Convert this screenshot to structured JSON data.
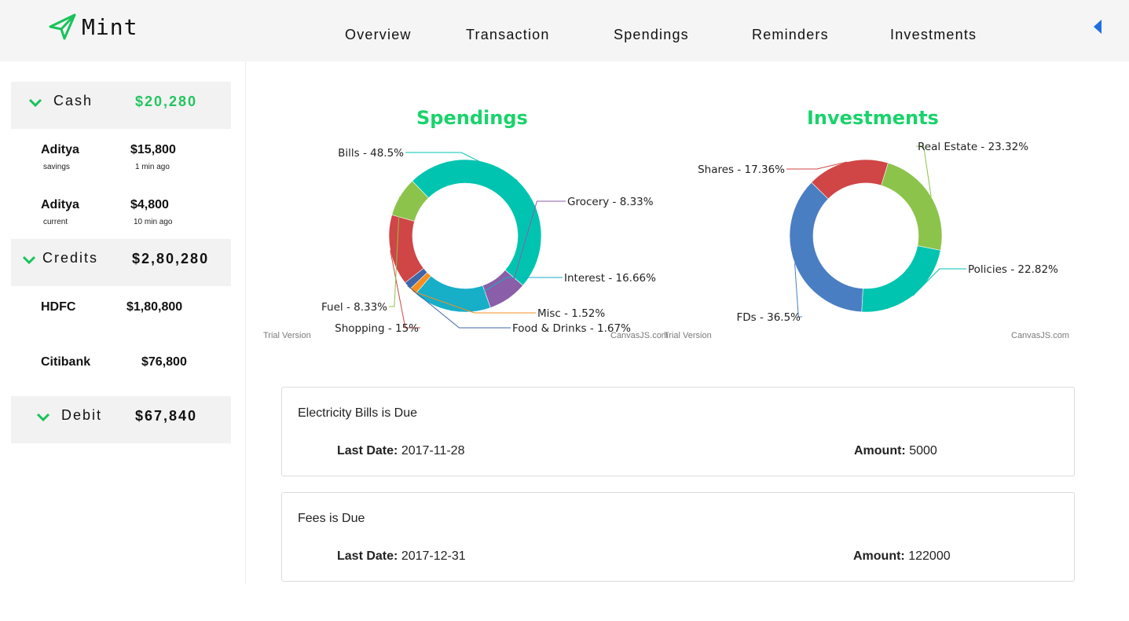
{
  "app": {
    "logo_text": "Mint",
    "logo_icon": "paper-plane-icon"
  },
  "nav": [
    {
      "label": "Overview"
    },
    {
      "label": "Transaction"
    },
    {
      "label": "Spendings"
    },
    {
      "label": "Reminders"
    },
    {
      "label": "Investments"
    }
  ],
  "sidebar": {
    "cash": {
      "title": "Cash",
      "amount": "$20,280",
      "accounts": [
        {
          "name": "Aditya",
          "sub": "savings",
          "amount": "$15,800",
          "time": "1 min ago"
        },
        {
          "name": "Aditya",
          "sub": "current",
          "amount": "$4,800",
          "time": "10 min ago"
        }
      ]
    },
    "credits": {
      "title": "Credits",
      "amount": "$2,80,280",
      "accounts": [
        {
          "name": "HDFC",
          "amount": "$1,80,800"
        },
        {
          "name": "Citibank",
          "amount": "$76,800"
        }
      ]
    },
    "debit": {
      "title": "Debit",
      "amount": "$67,840"
    }
  },
  "charts": {
    "watermark_left": "Trial Version",
    "watermark_right": "CanvasJS.com"
  },
  "chart_data": [
    {
      "type": "pie",
      "title": "Spendings",
      "slices": [
        {
          "label": "Bills - 48.5%",
          "value": 48.5,
          "color": "#00c4b0"
        },
        {
          "label": "Grocery - 8.33%",
          "value": 8.33,
          "color": "#8a5ea8"
        },
        {
          "label": "Interest - 16.66%",
          "value": 16.66,
          "color": "#17aec8"
        },
        {
          "label": "Misc - 1.52%",
          "value": 1.52,
          "color": "#f68e1e"
        },
        {
          "label": "Food & Drinks - 1.67%",
          "value": 1.67,
          "color": "#3f66a8"
        },
        {
          "label": "Shopping - 15%",
          "value": 15,
          "color": "#d04545"
        },
        {
          "label": "Fuel - 8.33%",
          "value": 8.33,
          "color": "#8cc34b"
        }
      ]
    },
    {
      "type": "pie",
      "title": "Investments",
      "slices": [
        {
          "label": "Real Estate - 23.32%",
          "value": 23.32,
          "color": "#8cc34b"
        },
        {
          "label": "Policies - 22.82%",
          "value": 22.82,
          "color": "#00c4b0"
        },
        {
          "label": "FDs - 36.5%",
          "value": 36.5,
          "color": "#4a7ec2"
        },
        {
          "label": "Shares - 17.36%",
          "value": 17.36,
          "color": "#d04545"
        }
      ]
    }
  ],
  "reminders": [
    {
      "title": "Electricity Bills is Due",
      "date_label": "Last Date:",
      "date": "2017-11-28",
      "amount_label": "Amount:",
      "amount": "5000"
    },
    {
      "title": "Fees is Due",
      "date_label": "Last Date:",
      "date": "2017-12-31",
      "amount_label": "Amount:",
      "amount": "122000"
    }
  ],
  "colors": {
    "accent_green": "#19d36b",
    "collapse_arrow": "#1f6fe0"
  }
}
